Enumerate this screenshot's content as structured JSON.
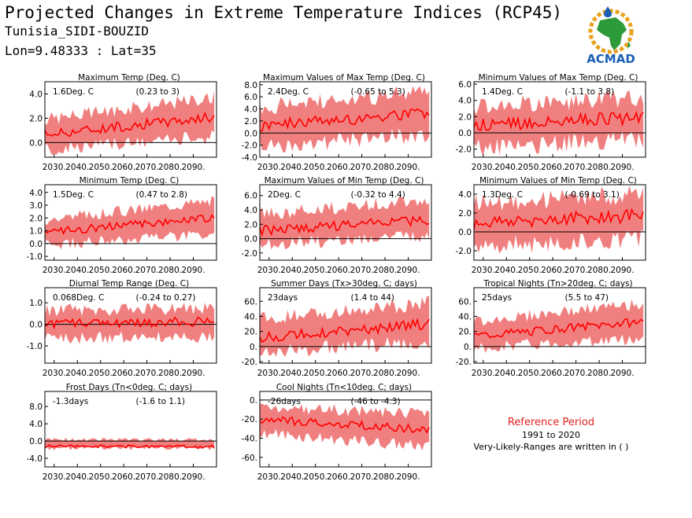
{
  "header": {
    "title": "Projected Changes in Extreme Temperature Indices (RCP45)",
    "location": "Tunisia_SIDI-BOUZID",
    "coords": "Lon=9.48333 : Lat=35"
  },
  "logo": {
    "text": "ACMAD",
    "icon": "africa-map-logo-icon",
    "colors": {
      "green": "#2e9b3a",
      "blue": "#1a5fb4",
      "gold": "#e8a21c"
    }
  },
  "legend": {
    "title": "Reference Period",
    "period": "1991 to 2020",
    "note": "Very-Likely-Ranges are written in ( )"
  },
  "colors": {
    "band": "#f08080",
    "line": "#ff0000",
    "zero": "#000000"
  },
  "chart_data": [
    {
      "id": "txmean",
      "type": "area",
      "title": "Maximum Temp (Deg. C)",
      "value_label": "1.6Deg. C",
      "range_label": "(0.23 to 3)",
      "x_ticks": [
        "2030.",
        "2040.",
        "2050.",
        "2060.",
        "2070.",
        "2080.",
        "2090."
      ],
      "x_range": [
        2026,
        2100
      ],
      "y_ticks": [
        "4.0",
        "2.0",
        "0.0"
      ],
      "y_values": [
        4,
        2,
        0
      ],
      "ylim": [
        -1.2,
        5.0
      ],
      "median_start": 0.7,
      "median_end": 2.1,
      "lower_start": -0.5,
      "lower_end": 0.6,
      "upper_start": 1.8,
      "upper_end": 3.6
    },
    {
      "id": "txx",
      "type": "area",
      "title": "Maximum Values of Max Temp (Deg. C)",
      "value_label": "2.4Deg. C",
      "range_label": "(-0.65 to 5.3)",
      "x_ticks": [
        "2030.",
        "2040.",
        "2050.",
        "2060.",
        "2070.",
        "2080.",
        "2090."
      ],
      "x_range": [
        2026,
        2100
      ],
      "y_ticks": [
        "8.0",
        "6.0",
        "4.0",
        "2.0",
        "0.0",
        "-2.0",
        "-4.0"
      ],
      "y_values": [
        8,
        6,
        4,
        2,
        0,
        -2,
        -4
      ],
      "ylim": [
        -4,
        8.5
      ],
      "median_start": 1.2,
      "median_end": 3.4,
      "lower_start": -1.8,
      "lower_end": 0.0,
      "upper_start": 4.0,
      "upper_end": 6.5
    },
    {
      "id": "txn",
      "type": "area",
      "title": "Minimum Values of Max Temp (Deg. C)",
      "value_label": "1.4Deg. C",
      "range_label": "(-1.1 to 3.8)",
      "x_ticks": [
        "2030.",
        "2040.",
        "2050.",
        "2060.",
        "2070.",
        "2080.",
        "2090."
      ],
      "x_range": [
        2026,
        2100
      ],
      "y_ticks": [
        "6.0",
        "4.0",
        "2.0",
        "0.0",
        "-2.0"
      ],
      "y_values": [
        6,
        4,
        2,
        0,
        -2
      ],
      "ylim": [
        -3,
        6.3
      ],
      "median_start": 0.9,
      "median_end": 1.9,
      "lower_start": -1.6,
      "lower_end": -0.5,
      "upper_start": 3.0,
      "upper_end": 4.2
    },
    {
      "id": "tnmean",
      "type": "area",
      "title": "Minimum Temp (Deg. C)",
      "value_label": "1.5Deg. C",
      "range_label": "(0.47 to 2.8)",
      "x_ticks": [
        "2030.",
        "2040.",
        "2050.",
        "2060.",
        "2070.",
        "2080.",
        "2090."
      ],
      "x_range": [
        2026,
        2100
      ],
      "y_ticks": [
        "4.0",
        "3.0",
        "2.0",
        "1.0",
        "0.0",
        "-1.0"
      ],
      "y_values": [
        4,
        3,
        2,
        1,
        0,
        -1
      ],
      "ylim": [
        -1.3,
        4.6
      ],
      "median_start": 0.9,
      "median_end": 2.0,
      "lower_start": 0.0,
      "lower_end": 0.8,
      "upper_start": 1.8,
      "upper_end": 3.3
    },
    {
      "id": "tnx",
      "type": "area",
      "title": "Maximum Values of Min Temp (Deg. C)",
      "value_label": "2Deg. C",
      "range_label": "(-0.32 to 4.4)",
      "x_ticks": [
        "2030.",
        "2040.",
        "2050.",
        "2060.",
        "2070.",
        "2080.",
        "2090."
      ],
      "x_range": [
        2026,
        2100
      ],
      "y_ticks": [
        "6.0",
        "4.0",
        "2.0",
        "0.0",
        "-2.0"
      ],
      "y_values": [
        6,
        4,
        2,
        0,
        -2
      ],
      "ylim": [
        -3,
        7.5
      ],
      "median_start": 1.1,
      "median_end": 2.6,
      "lower_start": -0.6,
      "lower_end": 0.6,
      "upper_start": 3.2,
      "upper_end": 5.2
    },
    {
      "id": "tnn",
      "type": "area",
      "title": "Minimum Values of Min Temp (Deg. C)",
      "value_label": "1.3Deg. C",
      "range_label": "(-0.69 to 3.1)",
      "x_ticks": [
        "2030.",
        "2040.",
        "2050.",
        "2060.",
        "2070.",
        "2080.",
        "2090."
      ],
      "x_range": [
        2026,
        2100
      ],
      "y_ticks": [
        "4.0",
        "2.0",
        "0.0",
        "-2.0"
      ],
      "y_values": [
        4,
        2,
        0,
        -2
      ],
      "ylim": [
        -3,
        5.0
      ],
      "median_start": 0.9,
      "median_end": 1.8,
      "lower_start": -1.3,
      "lower_end": -0.5,
      "upper_start": 2.8,
      "upper_end": 3.8
    },
    {
      "id": "dtr",
      "type": "area",
      "title": "Diurnal Temp Range (Deg. C)",
      "value_label": "0.068Deg. C",
      "range_label": "(-0.24 to 0.27)",
      "x_ticks": [
        "2030.",
        "2040.",
        "2050.",
        "2060.",
        "2070.",
        "2080.",
        "2090."
      ],
      "x_range": [
        2026,
        2100
      ],
      "y_ticks": [
        "1.0",
        "0.0",
        "-1.0"
      ],
      "y_values": [
        1,
        0,
        -1
      ],
      "ylim": [
        -1.8,
        1.7
      ],
      "median_start": 0.0,
      "median_end": 0.15,
      "lower_start": -0.6,
      "lower_end": -0.5,
      "upper_start": 0.6,
      "upper_end": 0.7
    },
    {
      "id": "su",
      "type": "area",
      "title": "Summer Days (Tx>30deg. C; days)",
      "value_label": "23days",
      "range_label": "(1.4 to 44)",
      "x_ticks": [
        "2030.",
        "2040.",
        "2050.",
        "2060.",
        "2070.",
        "2080.",
        "2090."
      ],
      "x_range": [
        2026,
        2100
      ],
      "y_ticks": [
        "60.",
        "40.",
        "20.",
        "0.",
        "-20."
      ],
      "y_values": [
        60,
        40,
        20,
        0,
        -20
      ],
      "ylim": [
        -22,
        78
      ],
      "median_start": 12,
      "median_end": 30,
      "lower_start": -5,
      "lower_end": 8,
      "upper_start": 35,
      "upper_end": 55
    },
    {
      "id": "tr",
      "type": "area",
      "title": "Tropical Nights (Tn>20deg. C; days)",
      "value_label": "25days",
      "range_label": "(5.5 to 47)",
      "x_ticks": [
        "2030.",
        "2040.",
        "2050.",
        "2060.",
        "2070.",
        "2080.",
        "2090."
      ],
      "x_range": [
        2026,
        2100
      ],
      "y_ticks": [
        "60.",
        "40.",
        "20.",
        "0.",
        "-20."
      ],
      "y_values": [
        60,
        40,
        20,
        0,
        -20
      ],
      "ylim": [
        -22,
        78
      ],
      "median_start": 14,
      "median_end": 33,
      "lower_start": 0,
      "lower_end": 12,
      "upper_start": 32,
      "upper_end": 55
    },
    {
      "id": "fd",
      "type": "area",
      "title": "Frost Days (Tn<0deg. C; days)",
      "value_label": "-1.3days",
      "range_label": "(-1.6 to 1.1)",
      "x_ticks": [
        "2030.",
        "2040.",
        "2050.",
        "2060.",
        "2070.",
        "2080.",
        "2090."
      ],
      "x_range": [
        2026,
        2100
      ],
      "y_ticks": [
        "8.0",
        "4.0",
        "0.0",
        "-4.0"
      ],
      "y_values": [
        8,
        4,
        0,
        -4
      ],
      "ylim": [
        -6,
        11.5
      ],
      "median_start": -1.2,
      "median_end": -1.3,
      "lower_start": -1.6,
      "lower_end": -1.6,
      "upper_start": 0.3,
      "upper_end": 0.2
    },
    {
      "id": "tn10",
      "type": "area",
      "title": "Cool Nights (Tn<10deg. C; days)",
      "value_label": "-26days",
      "range_label": "(-46 to -4.3)",
      "x_ticks": [
        "2030.",
        "2040.",
        "2050.",
        "2060.",
        "2070.",
        "2080.",
        "2090."
      ],
      "x_range": [
        2026,
        2100
      ],
      "y_ticks": [
        "0.",
        "-20.",
        "-40.",
        "-60."
      ],
      "y_values": [
        0,
        -20,
        -40,
        -60
      ],
      "ylim": [
        -70,
        9
      ],
      "median_start": -20,
      "median_end": -31,
      "lower_start": -33,
      "lower_end": -48,
      "upper_start": -8,
      "upper_end": -16
    }
  ]
}
